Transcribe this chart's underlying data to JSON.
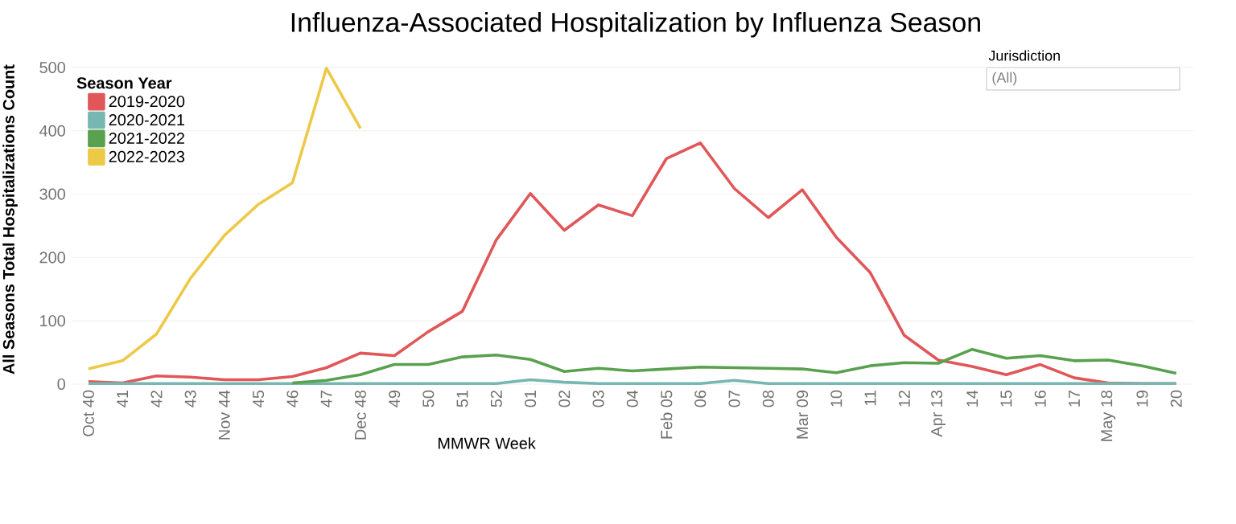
{
  "chart_data": {
    "type": "line",
    "title": "Influenza-Associated Hospitalization by Influenza Season",
    "xlabel": "MMWR Week",
    "ylabel": "All Seasons Total Hospitalizations Count",
    "legend_title": "Season Year",
    "categories": [
      "Oct 40",
      "41",
      "42",
      "43",
      "Nov 44",
      "45",
      "46",
      "47",
      "Dec 48",
      "49",
      "50",
      "51",
      "52",
      "01",
      "02",
      "03",
      "04",
      "Feb 05",
      "06",
      "07",
      "08",
      "Mar 09",
      "10",
      "11",
      "12",
      "Apr 13",
      "14",
      "15",
      "16",
      "17",
      "May 18",
      "19",
      "20"
    ],
    "series": [
      {
        "name": "2019-2020",
        "color": "#e15759",
        "values": [
          4,
          2,
          13,
          11,
          7,
          7,
          12,
          26,
          49,
          45,
          83,
          115,
          228,
          301,
          243,
          283,
          266,
          356,
          381,
          309,
          263,
          307,
          232,
          176,
          77,
          38,
          28,
          15,
          31,
          10,
          2,
          1,
          1
        ]
      },
      {
        "name": "2020-2021",
        "color": "#76b7b2",
        "values": [
          1,
          1,
          1,
          1,
          1,
          1,
          1,
          1,
          1,
          1,
          1,
          1,
          1,
          7,
          3,
          1,
          1,
          1,
          1,
          6,
          1,
          1,
          1,
          1,
          1,
          1,
          1,
          1,
          1,
          1,
          1,
          1,
          1
        ]
      },
      {
        "name": "2021-2022",
        "color": "#59a14f",
        "values": [
          null,
          null,
          null,
          null,
          null,
          null,
          2,
          6,
          15,
          31,
          31,
          43,
          46,
          39,
          20,
          25,
          21,
          24,
          27,
          26,
          25,
          24,
          18,
          29,
          34,
          33,
          55,
          41,
          45,
          37,
          38,
          29,
          17
        ]
      },
      {
        "name": "2022-2023",
        "color": "#edc948",
        "values": [
          24,
          37,
          79,
          167,
          235,
          284,
          318,
          499,
          404,
          null,
          null,
          null,
          null,
          null,
          null,
          null,
          null,
          null,
          null,
          null,
          null,
          null,
          null,
          null,
          null,
          null,
          null,
          null,
          null,
          null,
          null,
          null,
          null
        ]
      }
    ],
    "ylim": [
      0,
      500
    ],
    "yticks": [
      0,
      100,
      200,
      300,
      400,
      500
    ],
    "grid": "y",
    "legend": "top left",
    "marker": "none",
    "line_style": "solid",
    "annotations": [
      "Jurisdiction",
      "(All)"
    ]
  }
}
